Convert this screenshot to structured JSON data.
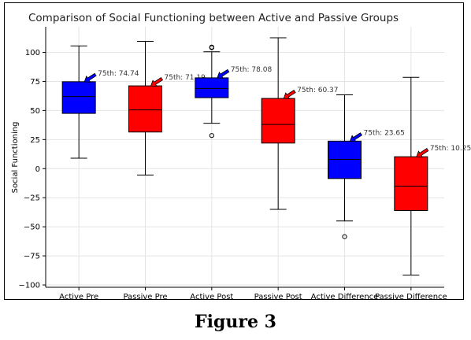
{
  "chart_data": {
    "type": "box",
    "title": "Comparison of Social Functioning between Active and Passive Groups",
    "xlabel": "",
    "ylabel": "Social Functioning",
    "ylim": [
      -102,
      122
    ],
    "yticks": [
      -100,
      -75,
      -50,
      -25,
      0,
      25,
      50,
      75,
      100
    ],
    "grid": true,
    "categories": [
      "Active Pre",
      "Passive Pre",
      "Active Post",
      "Passive Post",
      "Active Difference",
      "Passive Difference"
    ],
    "boxes": [
      {
        "category": "Active Pre",
        "whisker_low": 9,
        "q1": 47.5,
        "median": 62,
        "q3": 74.74,
        "whisker_high": 105.5,
        "outliers": [],
        "color": "#0000ff",
        "annotation": "75th: 74.74"
      },
      {
        "category": "Passive Pre",
        "whisker_low": -5.5,
        "q1": 31.5,
        "median": 50.5,
        "q3": 71.19,
        "whisker_high": 109.5,
        "outliers": [],
        "color": "#ff0000",
        "annotation": "75th: 71.19"
      },
      {
        "category": "Active Post",
        "whisker_low": 39,
        "q1": 61,
        "median": 69,
        "q3": 78.08,
        "whisker_high": 100.5,
        "outliers": [
          104.5,
          104,
          28.5
        ],
        "color": "#0000ff",
        "annotation": "75th: 78.08"
      },
      {
        "category": "Passive Post",
        "whisker_low": -35,
        "q1": 22,
        "median": 38,
        "q3": 60.37,
        "whisker_high": 112.5,
        "outliers": [],
        "color": "#ff0000",
        "annotation": "75th: 60.37"
      },
      {
        "category": "Active Difference",
        "whisker_low": -45,
        "q1": -8.5,
        "median": 8,
        "q3": 23.65,
        "whisker_high": 63.5,
        "outliers": [
          -58.5
        ],
        "color": "#0000ff",
        "annotation": "75th: 23.65"
      },
      {
        "category": "Passive Difference",
        "whisker_low": -91.5,
        "q1": -36,
        "median": -15,
        "q3": 10.25,
        "whisker_high": 78.5,
        "outliers": [],
        "color": "#ff0000",
        "annotation": "75th: 10.25"
      }
    ]
  },
  "caption": "Figure 3"
}
